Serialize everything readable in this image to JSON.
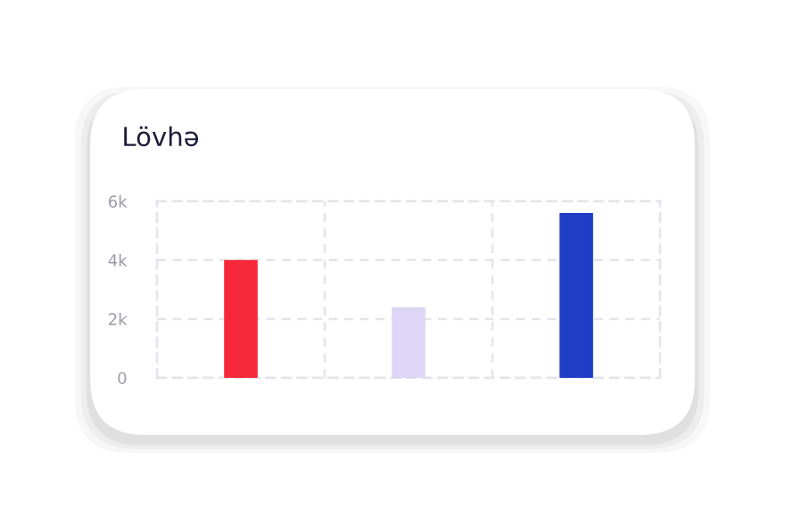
{
  "chart_data": {
    "type": "bar",
    "title": "Lövhə",
    "categories": [
      null,
      null,
      null
    ],
    "values": [
      4000,
      2400,
      5600
    ],
    "colors": [
      "#f5283a",
      "#ddd6f6",
      "#1e3ec8"
    ],
    "ylim": [
      0,
      6000
    ],
    "yticks": [
      {
        "value": 0,
        "label": "0"
      },
      {
        "value": 2000,
        "label": "2k"
      },
      {
        "value": 4000,
        "label": "4k"
      },
      {
        "value": 6000,
        "label": "6k"
      }
    ],
    "grid": true
  }
}
